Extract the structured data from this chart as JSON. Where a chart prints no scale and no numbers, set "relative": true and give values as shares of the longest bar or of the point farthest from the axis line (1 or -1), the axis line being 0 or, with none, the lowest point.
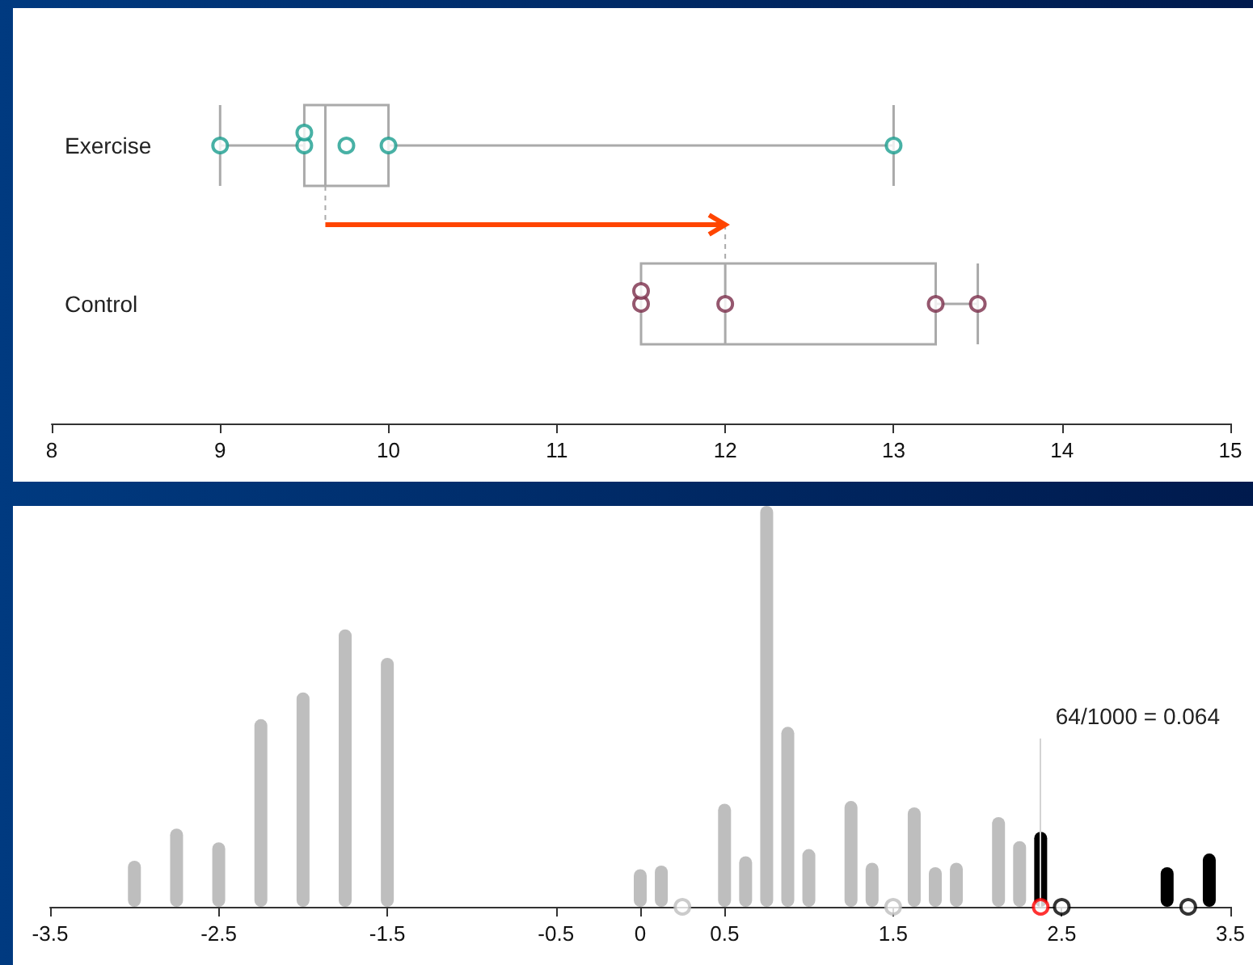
{
  "chart_data": [
    {
      "type": "box",
      "orientation": "horizontal",
      "categories": [
        "Exercise",
        "Control"
      ],
      "marker": "circle",
      "xlim": [
        8,
        15
      ],
      "xticks": [
        8,
        9,
        10,
        11,
        12,
        13,
        14,
        15
      ],
      "series": [
        {
          "type": "box",
          "color": "#aaaaaa",
          "boxes": [
            {
              "low": 9,
              "q1": 9.5,
              "median": 9.625,
              "q3": 10,
              "high": 13
            },
            {
              "low": 11.5,
              "q1": 11.5,
              "median": 12,
              "q3": 13.25,
              "high": 13.5
            }
          ]
        },
        {
          "type": "scatter",
          "color": "#1a9e8f",
          "x": [
            "Exercise",
            "Exercise",
            "Exercise",
            "Exercise",
            "Exercise",
            "Exercise"
          ],
          "values": [
            9,
            9.5,
            9.5,
            9.75,
            10,
            13
          ]
        },
        {
          "type": "scatter",
          "color": "#7b2d4a",
          "x": [
            "Control",
            "Control",
            "Control",
            "Control",
            "Control"
          ],
          "values": [
            11.5,
            11.5,
            12,
            13.25,
            13.5
          ]
        }
      ]
    },
    {
      "type": "bar",
      "relative": true,
      "marker": "circle",
      "xlim": [
        -3.5,
        3.5
      ],
      "xticks": [
        -3.5,
        -2.5,
        -1.5,
        -0.5,
        0,
        0.5,
        1.5,
        2.5,
        3.5
      ],
      "series": [
        {
          "color": "#bebebe",
          "x": [
            -3,
            -2.75,
            -2.5,
            -2.25,
            -2,
            -1.75,
            -1.5,
            0,
            0.125,
            0.5,
            0.625,
            0.75,
            0.875,
            1,
            1.25,
            1.375,
            1.625,
            1.75,
            1.875,
            2.125,
            2.25
          ],
          "values": [
            0.115,
            0.195,
            0.161,
            0.468,
            0.535,
            0.692,
            0.621,
            0.094,
            0.103,
            0.257,
            0.126,
            1,
            0.449,
            0.144,
            0.264,
            0.11,
            0.248,
            0.099,
            0.11,
            0.224,
            0.164
          ]
        },
        {
          "color": "#000000",
          "x": [
            2.375,
            3.125,
            3.375
          ],
          "values": [
            0.187,
            0.099,
            0.133
          ]
        },
        {
          "type": "scatter",
          "color": "#bebebe",
          "x": [
            0.25,
            1.5
          ],
          "values": [
            0,
            0
          ]
        },
        {
          "type": "scatter",
          "color": "#000000",
          "x": [
            2.5,
            3.25
          ],
          "values": [
            0,
            0
          ]
        },
        {
          "type": "scatter",
          "color": "#ff0000",
          "x": [
            2.375
          ],
          "values": [
            0
          ]
        }
      ],
      "ref_lines": [
        {
          "axis": "x",
          "value": 2.375,
          "color": "#d3d3d3"
        }
      ],
      "annotations": [
        "64/1000 = 0.064"
      ]
    }
  ]
}
